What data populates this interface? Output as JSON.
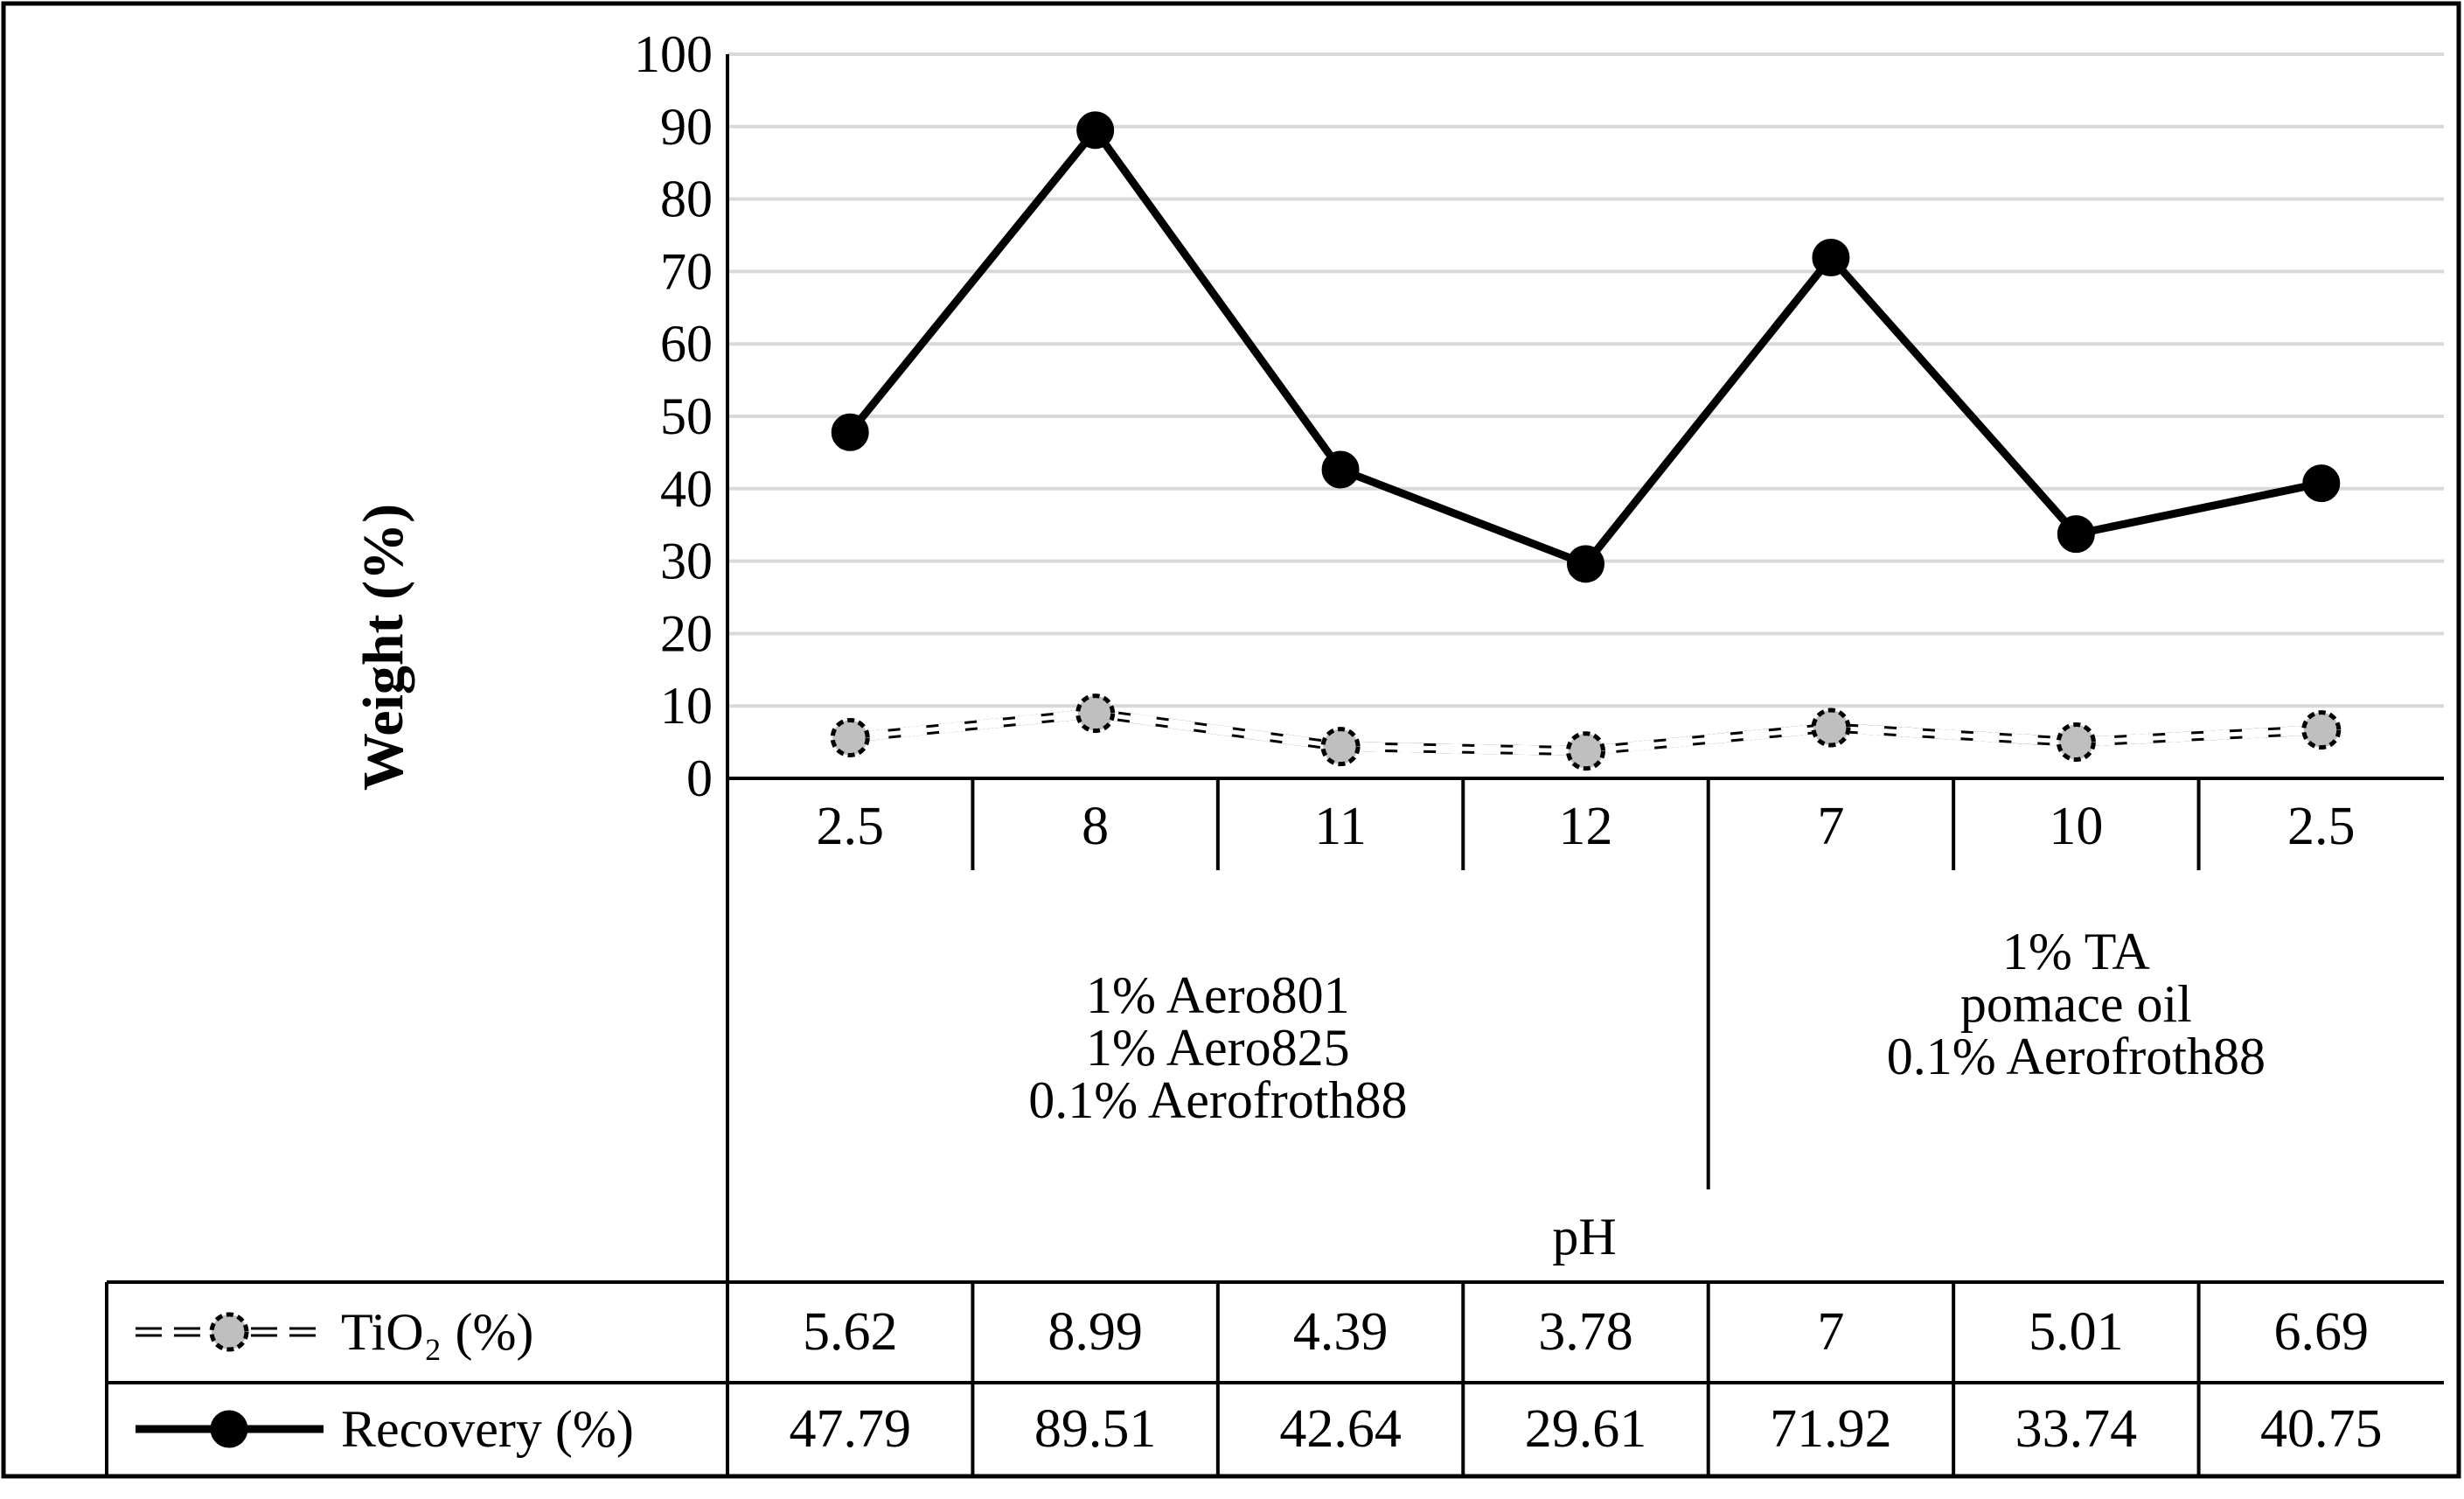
{
  "chart_data": {
    "type": "line",
    "ylabel": "Weight (%)",
    "xlabel": "pH",
    "ylim": [
      0,
      100
    ],
    "yticks": [
      0,
      10,
      20,
      30,
      40,
      50,
      60,
      70,
      80,
      90,
      100
    ],
    "categories": [
      "2.5",
      "8",
      "11",
      "12",
      "7",
      "10",
      "2.5"
    ],
    "groups": [
      {
        "lines": [
          "1% Aero801",
          "1% Aero825",
          "0.1% Aerofroth88"
        ],
        "span": [
          0,
          3
        ]
      },
      {
        "lines": [
          "1% TA",
          "pomace oil",
          "0.1% Aerofroth88"
        ],
        "span": [
          4,
          6
        ]
      }
    ],
    "series": [
      {
        "name": "TiO₂ (%)",
        "style": "dashed",
        "marker_fill": "#bfbfbf",
        "values": [
          5.62,
          8.99,
          4.39,
          3.78,
          7,
          5.01,
          6.69
        ],
        "labels": [
          "5.62",
          "8.99",
          "4.39",
          "3.78",
          "7",
          "5.01",
          "6.69"
        ]
      },
      {
        "name": "Recovery (%)",
        "style": "solid",
        "marker_fill": "#000000",
        "values": [
          47.79,
          89.51,
          42.64,
          29.61,
          71.92,
          33.74,
          40.75
        ],
        "labels": [
          "47.79",
          "89.51",
          "42.64",
          "29.61",
          "71.92",
          "33.74",
          "40.75"
        ]
      }
    ],
    "grid": true,
    "colors": {
      "line": "#000000",
      "grid": "#d9d9d9"
    }
  }
}
